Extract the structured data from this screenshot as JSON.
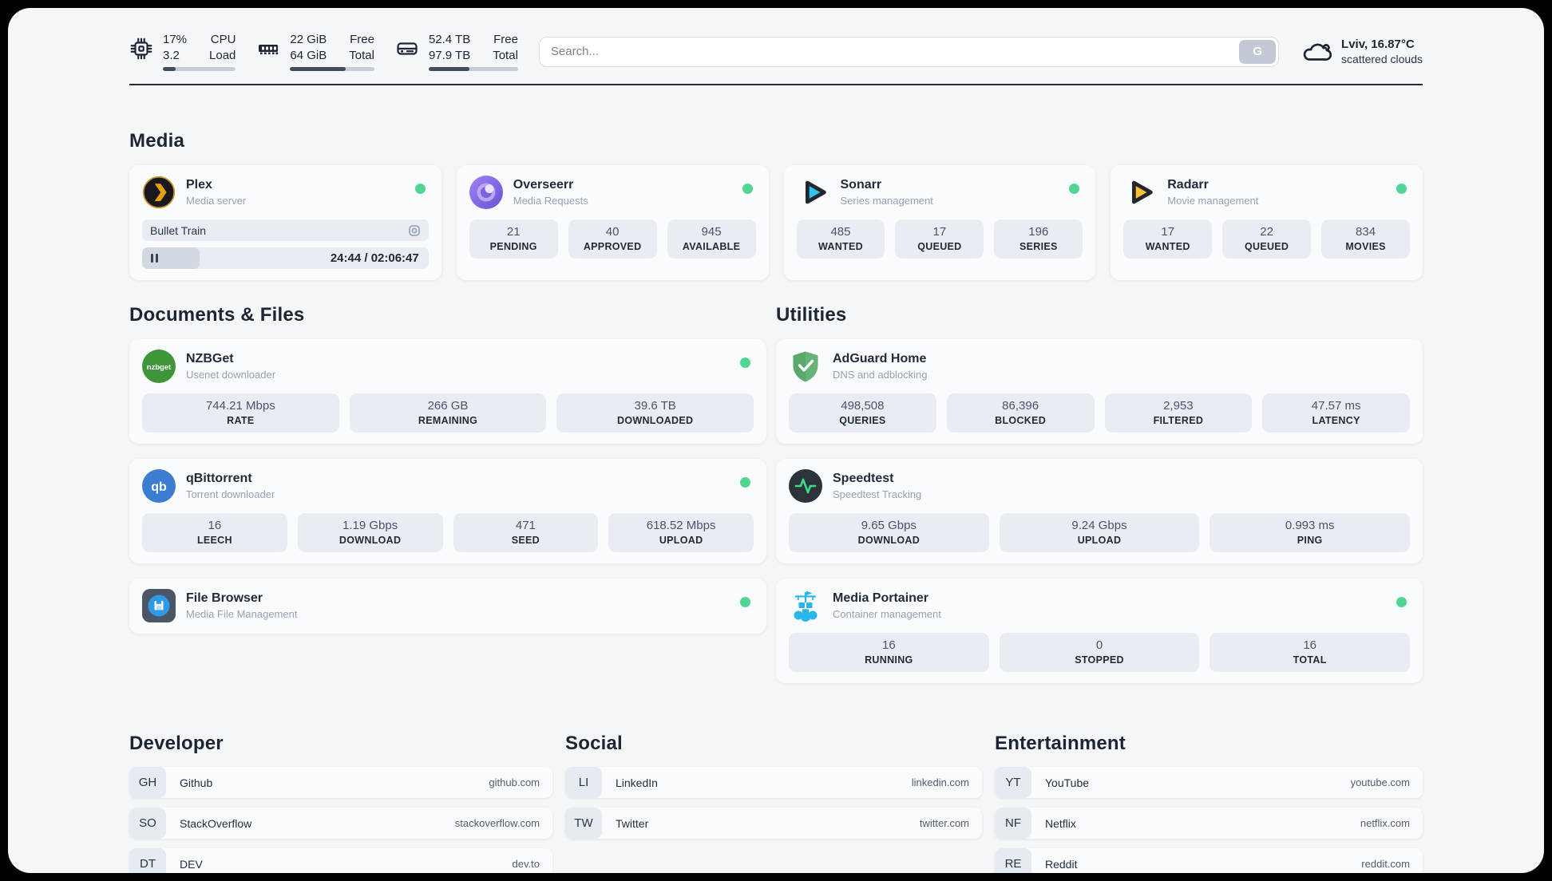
{
  "topbar": {
    "cpu": {
      "value_top": "17%",
      "value_bottom": "3.2",
      "label_top": "CPU",
      "label_bottom": "Load",
      "progress": 17
    },
    "ram": {
      "value_top": "22 GiB",
      "value_bottom": "64 GiB",
      "label_top": "Free",
      "label_bottom": "Total",
      "progress": 66
    },
    "disk": {
      "value_top": "52.4 TB",
      "value_bottom": "97.9 TB",
      "label_top": "Free",
      "label_bottom": "Total",
      "progress": 46
    },
    "search": {
      "placeholder": "Search...",
      "button_label": "G"
    },
    "weather": {
      "title": "Lviv, 16.87°C",
      "subtitle": "scattered clouds"
    }
  },
  "sections": {
    "media": {
      "title": "Media",
      "cards": [
        {
          "name": "Plex",
          "subtitle": "Media server",
          "online": true,
          "now_playing": "Bullet Train",
          "time": "24:44 / 02:06:47",
          "progress": 20
        },
        {
          "name": "Overseerr",
          "subtitle": "Media Requests",
          "online": true,
          "stats": [
            {
              "value": "21",
              "label": "PENDING"
            },
            {
              "value": "40",
              "label": "APPROVED"
            },
            {
              "value": "945",
              "label": "AVAILABLE"
            }
          ]
        },
        {
          "name": "Sonarr",
          "subtitle": "Series management",
          "online": true,
          "stats": [
            {
              "value": "485",
              "label": "WANTED"
            },
            {
              "value": "17",
              "label": "QUEUED"
            },
            {
              "value": "196",
              "label": "SERIES"
            }
          ]
        },
        {
          "name": "Radarr",
          "subtitle": "Movie management",
          "online": true,
          "stats": [
            {
              "value": "17",
              "label": "WANTED"
            },
            {
              "value": "22",
              "label": "QUEUED"
            },
            {
              "value": "834",
              "label": "MOVIES"
            }
          ]
        }
      ]
    },
    "documents": {
      "title": "Documents & Files",
      "cards": [
        {
          "name": "NZBGet",
          "subtitle": "Usenet downloader",
          "online": true,
          "stats": [
            {
              "value": "744.21 Mbps",
              "label": "RATE"
            },
            {
              "value": "266 GB",
              "label": "REMAINING"
            },
            {
              "value": "39.6 TB",
              "label": "DOWNLOADED"
            }
          ]
        },
        {
          "name": "qBittorrent",
          "subtitle": "Torrent downloader",
          "online": true,
          "stats": [
            {
              "value": "16",
              "label": "LEECH"
            },
            {
              "value": "1.19 Gbps",
              "label": "DOWNLOAD"
            },
            {
              "value": "471",
              "label": "SEED"
            },
            {
              "value": "618.52 Mbps",
              "label": "UPLOAD"
            }
          ]
        },
        {
          "name": "File Browser",
          "subtitle": "Media File Management",
          "online": true,
          "stats": []
        }
      ]
    },
    "utilities": {
      "title": "Utilities",
      "cards": [
        {
          "name": "AdGuard Home",
          "subtitle": "DNS and adblocking",
          "online": false,
          "stats": [
            {
              "value": "498,508",
              "label": "QUERIES"
            },
            {
              "value": "86,396",
              "label": "BLOCKED"
            },
            {
              "value": "2,953",
              "label": "FILTERED"
            },
            {
              "value": "47.57 ms",
              "label": "LATENCY"
            }
          ]
        },
        {
          "name": "Speedtest",
          "subtitle": "Speedtest Tracking",
          "online": false,
          "stats": [
            {
              "value": "9.65 Gbps",
              "label": "DOWNLOAD"
            },
            {
              "value": "9.24 Gbps",
              "label": "UPLOAD"
            },
            {
              "value": "0.993 ms",
              "label": "PING"
            }
          ]
        },
        {
          "name": "Media Portainer",
          "subtitle": "Container management",
          "online": true,
          "stats": [
            {
              "value": "16",
              "label": "RUNNING"
            },
            {
              "value": "0",
              "label": "STOPPED"
            },
            {
              "value": "16",
              "label": "TOTAL"
            }
          ]
        }
      ]
    }
  },
  "bookmarks": [
    {
      "title": "Developer",
      "items": [
        {
          "abbr": "GH",
          "name": "Github",
          "url": "github.com"
        },
        {
          "abbr": "SO",
          "name": "StackOverflow",
          "url": "stackoverflow.com"
        },
        {
          "abbr": "DT",
          "name": "DEV",
          "url": "dev.to"
        }
      ]
    },
    {
      "title": "Social",
      "items": [
        {
          "abbr": "LI",
          "name": "LinkedIn",
          "url": "linkedin.com"
        },
        {
          "abbr": "TW",
          "name": "Twitter",
          "url": "twitter.com"
        }
      ]
    },
    {
      "title": "Entertainment",
      "items": [
        {
          "abbr": "YT",
          "name": "YouTube",
          "url": "youtube.com"
        },
        {
          "abbr": "NF",
          "name": "Netflix",
          "url": "netflix.com"
        },
        {
          "abbr": "RE",
          "name": "Reddit",
          "url": "reddit.com"
        }
      ]
    }
  ],
  "colors": {
    "status_online": "#50d592",
    "plex_accent": "#e5a00d",
    "sonarr_accent": "#2fc5f0",
    "radarr_accent": "#fbc22d",
    "adguard_green": "#67b279",
    "speedtest_pulse": "#3ddc84",
    "portainer_blue": "#29b6e8",
    "progress_fill": "#424d60"
  }
}
